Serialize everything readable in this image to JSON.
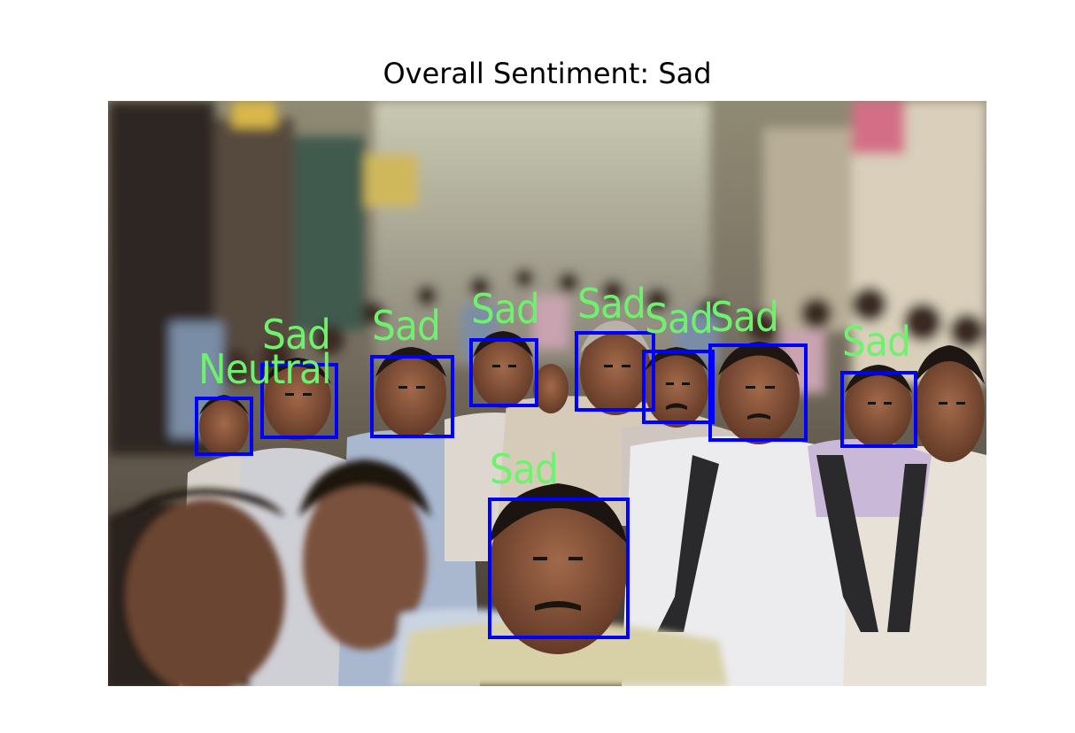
{
  "title": "Overall Sentiment: Sad",
  "annotation_style": {
    "box_color": "#0000ff",
    "label_color": "#6ef26e"
  },
  "faces": [
    {
      "id": "face-1",
      "label": "Neutral"
    },
    {
      "id": "face-2",
      "label": "Sad"
    },
    {
      "id": "face-3",
      "label": "Sad"
    },
    {
      "id": "face-4",
      "label": "Sad"
    },
    {
      "id": "face-5",
      "label": "Sad"
    },
    {
      "id": "face-6",
      "label": "Sad"
    },
    {
      "id": "face-7",
      "label": "Sad"
    },
    {
      "id": "face-8",
      "label": "Sad"
    },
    {
      "id": "face-9",
      "label": "Sad"
    }
  ]
}
